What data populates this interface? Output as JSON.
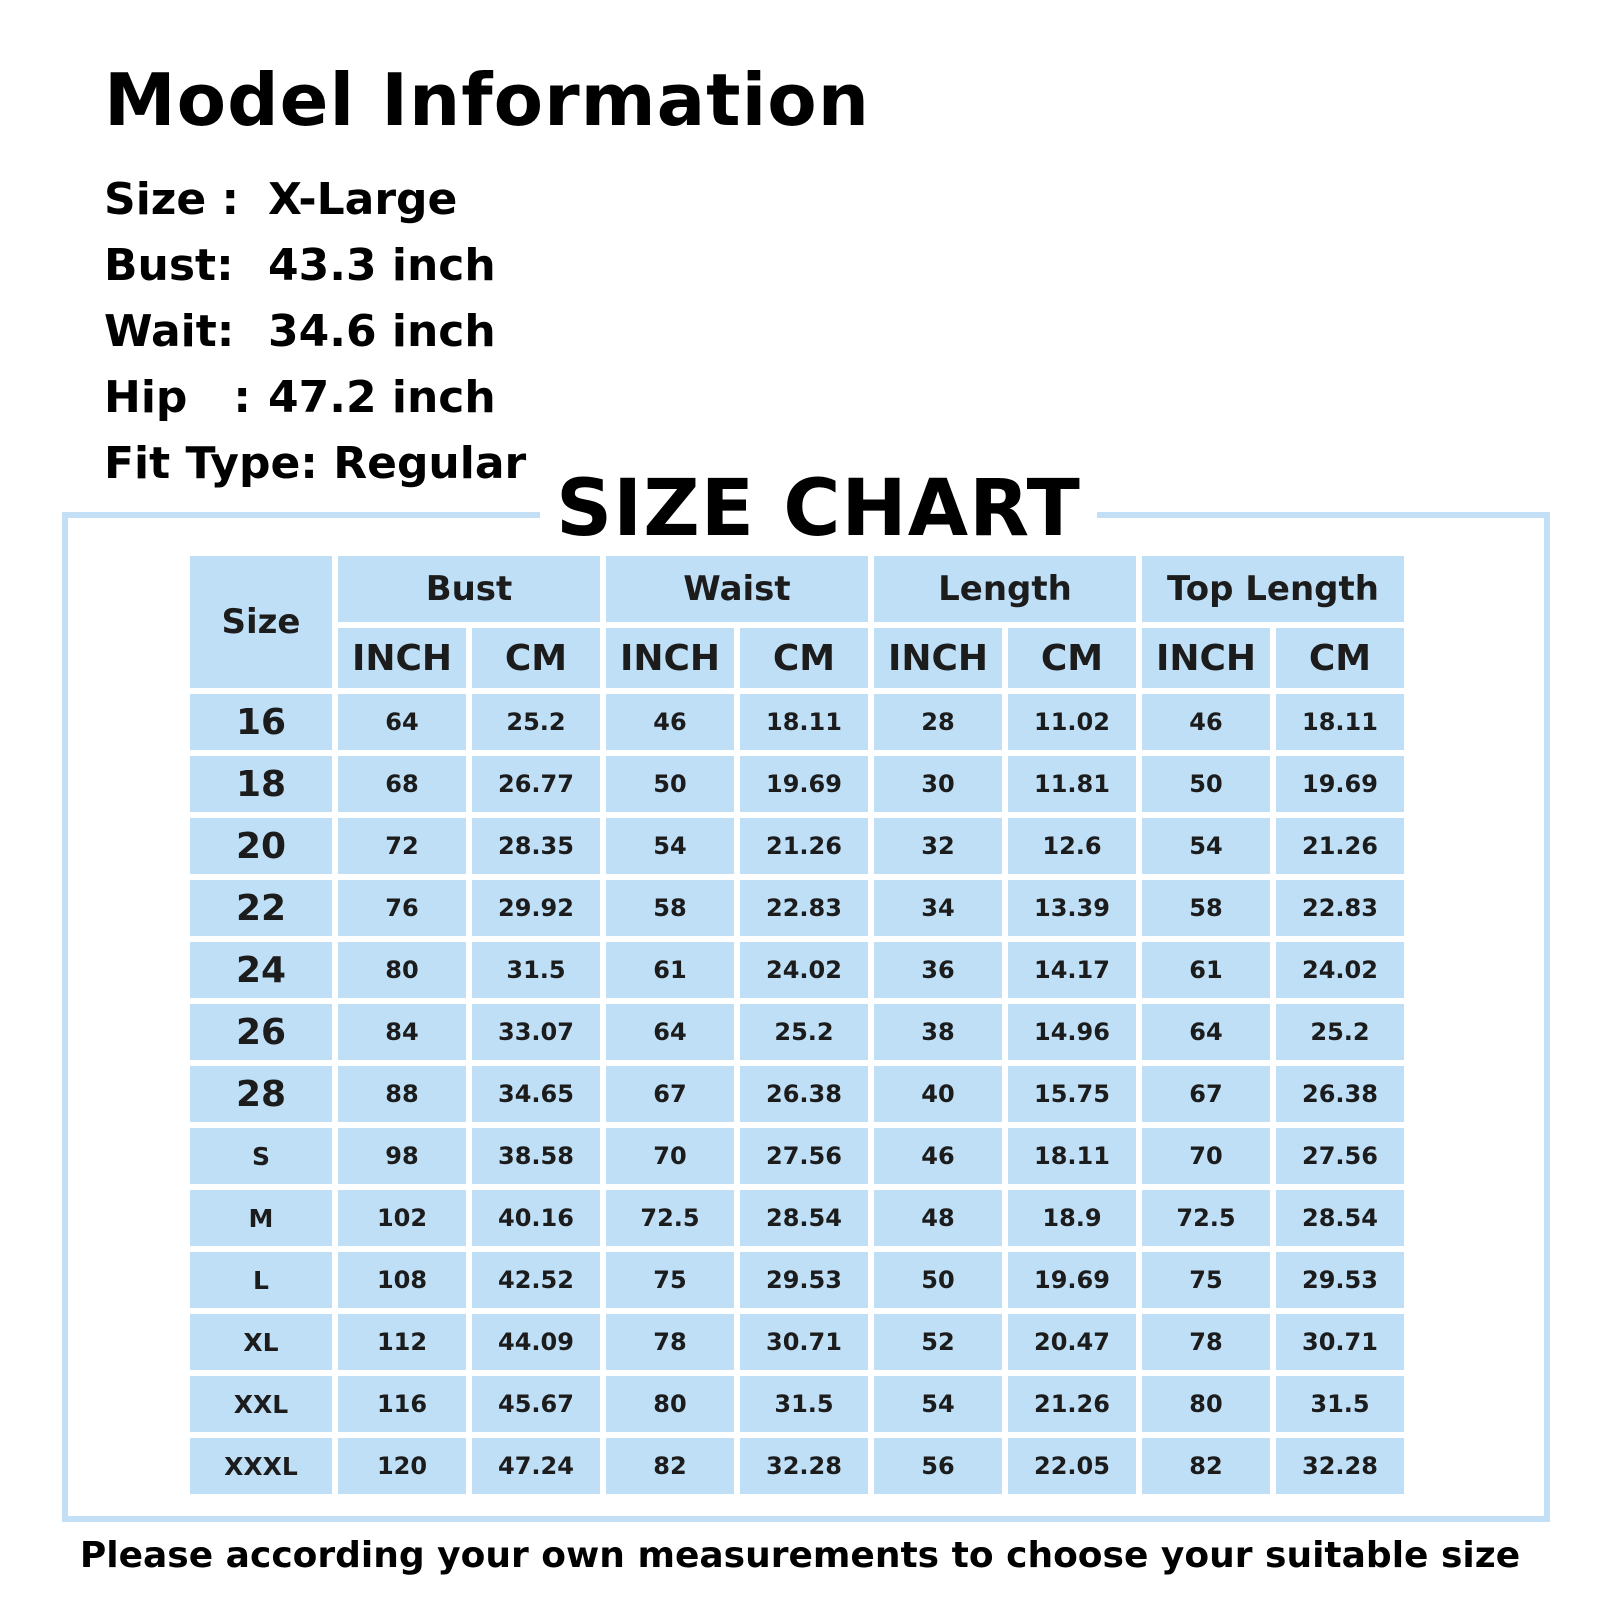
{
  "model": {
    "title": "Model Information",
    "rows": [
      {
        "label": "Size :",
        "value": "X-Large"
      },
      {
        "label": "Bust:",
        "value": "43.3 inch"
      },
      {
        "label": "Wait:",
        "value": "34.6 inch"
      },
      {
        "label": "Hip   :",
        "value": "47.2 inch"
      }
    ],
    "fit_type": "Fit Type: Regular"
  },
  "chart": {
    "title": "SIZE CHART",
    "size_header": "Size",
    "groups": [
      "Bust",
      "Waist",
      "Length",
      "Top Length"
    ],
    "units": [
      "INCH",
      "CM",
      "INCH",
      "CM",
      "INCH",
      "CM",
      "INCH",
      "CM"
    ],
    "rows": [
      {
        "size": "16",
        "values": [
          "64",
          "25.2",
          "46",
          "18.11",
          "28",
          "11.02",
          "46",
          "18.11"
        ]
      },
      {
        "size": "18",
        "values": [
          "68",
          "26.77",
          "50",
          "19.69",
          "30",
          "11.81",
          "50",
          "19.69"
        ]
      },
      {
        "size": "20",
        "values": [
          "72",
          "28.35",
          "54",
          "21.26",
          "32",
          "12.6",
          "54",
          "21.26"
        ]
      },
      {
        "size": "22",
        "values": [
          "76",
          "29.92",
          "58",
          "22.83",
          "34",
          "13.39",
          "58",
          "22.83"
        ]
      },
      {
        "size": "24",
        "values": [
          "80",
          "31.5",
          "61",
          "24.02",
          "36",
          "14.17",
          "61",
          "24.02"
        ]
      },
      {
        "size": "26",
        "values": [
          "84",
          "33.07",
          "64",
          "25.2",
          "38",
          "14.96",
          "64",
          "25.2"
        ]
      },
      {
        "size": "28",
        "values": [
          "88",
          "34.65",
          "67",
          "26.38",
          "40",
          "15.75",
          "67",
          "26.38"
        ]
      },
      {
        "size": "S",
        "values": [
          "98",
          "38.58",
          "70",
          "27.56",
          "46",
          "18.11",
          "70",
          "27.56"
        ]
      },
      {
        "size": "M",
        "values": [
          "102",
          "40.16",
          "72.5",
          "28.54",
          "48",
          "18.9",
          "72.5",
          "28.54"
        ]
      },
      {
        "size": "L",
        "values": [
          "108",
          "42.52",
          "75",
          "29.53",
          "50",
          "19.69",
          "75",
          "29.53"
        ]
      },
      {
        "size": "XL",
        "values": [
          "112",
          "44.09",
          "78",
          "30.71",
          "52",
          "20.47",
          "78",
          "30.71"
        ]
      },
      {
        "size": "XXL",
        "values": [
          "116",
          "45.67",
          "80",
          "31.5",
          "54",
          "21.26",
          "80",
          "31.5"
        ]
      },
      {
        "size": "XXXL",
        "values": [
          "120",
          "47.24",
          "82",
          "32.28",
          "56",
          "22.05",
          "82",
          "32.28"
        ]
      }
    ]
  },
  "footer_note": "Please according your own measurements to choose your suitable size",
  "colors": {
    "cell_fill": "#bfdff7",
    "frame": "#c3dff5",
    "unit_text": "#ffffff"
  }
}
